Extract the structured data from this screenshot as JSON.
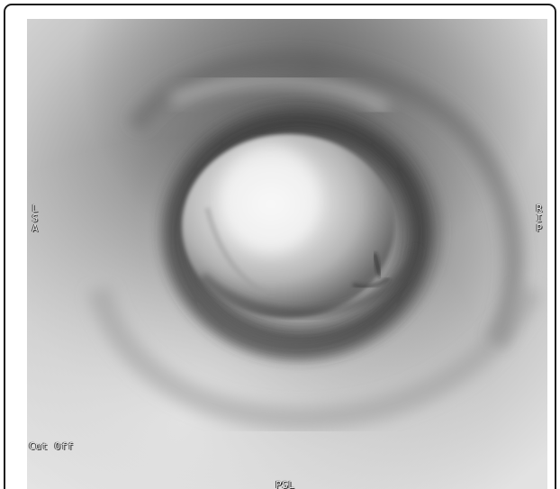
{
  "viewer": {
    "orientation_left": "LSA",
    "orientation_right": "RIP",
    "orientation_bottom": "PSL",
    "cut_off_label": "Cut Off"
  }
}
